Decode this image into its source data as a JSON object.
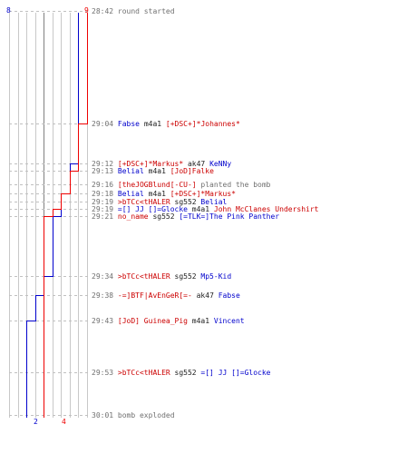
{
  "colors": {
    "ct": "#0000cc",
    "t": "#ee0000",
    "grid": "#c8c8c8",
    "text_gray": "#707070"
  },
  "counts": {
    "ct_start": "8",
    "t_start": "9",
    "ct_end": "2",
    "t_end": "4"
  },
  "ct_steps": [
    8,
    7,
    6,
    5,
    4,
    3,
    2
  ],
  "t_steps": [
    9,
    8,
    7,
    6,
    5,
    4
  ],
  "events": [
    {
      "time": "28:42",
      "parts": [
        {
          "text": "round started",
          "team": "gray"
        }
      ]
    },
    {
      "time": "29:04",
      "parts": [
        {
          "text": "Fabse",
          "team": "ct"
        },
        {
          "text": " m4a1 ",
          "team": "plain"
        },
        {
          "text": "[+DSC+]*Johannes*",
          "team": "t"
        }
      ]
    },
    {
      "time": "29:12",
      "parts": [
        {
          "text": "[+DSC+]*Markus*",
          "team": "t"
        },
        {
          "text": " ak47 ",
          "team": "plain"
        },
        {
          "text": "KeNNy",
          "team": "ct"
        }
      ]
    },
    {
      "time": "29:13",
      "parts": [
        {
          "text": "Belial",
          "team": "ct"
        },
        {
          "text": " m4a1 ",
          "team": "plain"
        },
        {
          "text": "[JoD]Falke",
          "team": "t"
        }
      ]
    },
    {
      "time": "29:16",
      "parts": [
        {
          "text": "[theJOGBlund[-CU-]",
          "team": "t"
        },
        {
          "text": " planted the bomb",
          "team": "gray"
        }
      ]
    },
    {
      "time": "29:18",
      "parts": [
        {
          "text": "Belial",
          "team": "ct"
        },
        {
          "text": " m4a1 ",
          "team": "plain"
        },
        {
          "text": "[+DSC+]*Markus*",
          "team": "t"
        }
      ]
    },
    {
      "time": "29:19",
      "parts": [
        {
          "text": ">bTCc<tHALER",
          "team": "t"
        },
        {
          "text": " sg552 ",
          "team": "plain"
        },
        {
          "text": "Belial",
          "team": "ct"
        }
      ]
    },
    {
      "time": "29:19",
      "parts": [
        {
          "text": "=[] JJ []=Glocke",
          "team": "ct"
        },
        {
          "text": " m4a1 ",
          "team": "plain"
        },
        {
          "text": "John McClanes Undershirt",
          "team": "t"
        }
      ]
    },
    {
      "time": "29:21",
      "parts": [
        {
          "text": "no_name",
          "team": "t"
        },
        {
          "text": " sg552 ",
          "team": "plain"
        },
        {
          "text": "[=TLK=]The Pink Panther",
          "team": "ct"
        }
      ]
    },
    {
      "time": "29:34",
      "parts": [
        {
          "text": ">bTCc<tHALER",
          "team": "t"
        },
        {
          "text": " sg552 ",
          "team": "plain"
        },
        {
          "text": "Mp5-Kid",
          "team": "ct"
        }
      ]
    },
    {
      "time": "29:38",
      "parts": [
        {
          "text": "-=]BTF|AvEnGeR[=-",
          "team": "t"
        },
        {
          "text": " ak47 ",
          "team": "plain"
        },
        {
          "text": "Fabse",
          "team": "ct"
        }
      ]
    },
    {
      "time": "29:43",
      "parts": [
        {
          "text": "[JoD] Guinea_Pig",
          "team": "t"
        },
        {
          "text": " m4a1 ",
          "team": "plain"
        },
        {
          "text": "Vincent",
          "team": "ct"
        }
      ]
    },
    {
      "time": "29:53",
      "parts": [
        {
          "text": ">bTCc<tHALER",
          "team": "t"
        },
        {
          "text": " sg552 ",
          "team": "plain"
        },
        {
          "text": "=[] JJ []=Glocke",
          "team": "ct"
        }
      ]
    },
    {
      "time": "30:01",
      "parts": [
        {
          "text": "bomb exploded",
          "team": "gray"
        }
      ]
    }
  ]
}
